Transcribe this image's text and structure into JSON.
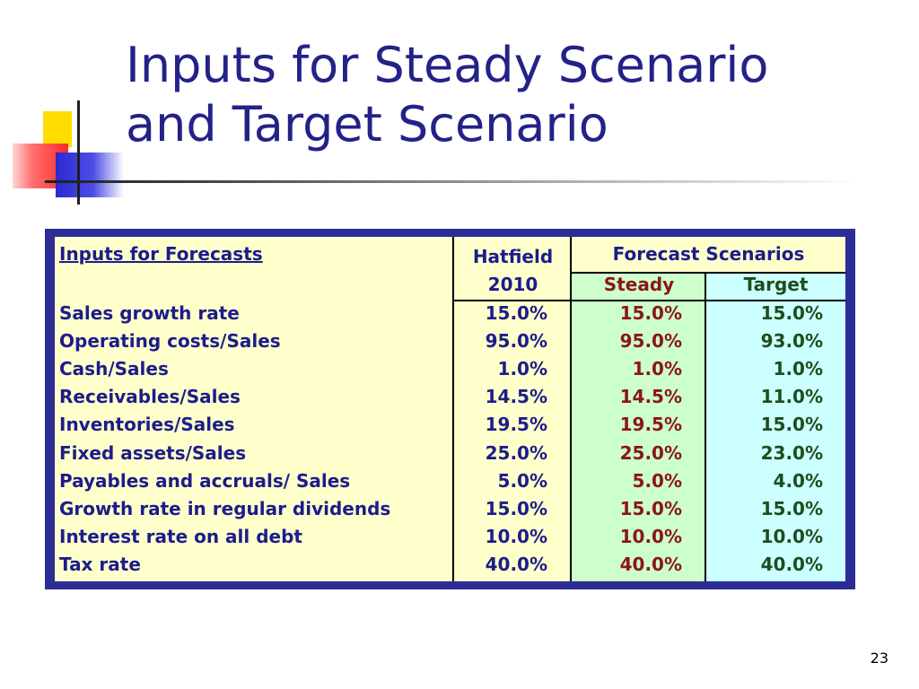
{
  "slide": {
    "title_line1": "Inputs for Steady Scenario",
    "title_line2": "and Target Scenario",
    "page_number": "23"
  },
  "table": {
    "header_link": "Inputs for Forecasts",
    "col_company": "Hatfield",
    "col_year": "2010",
    "col_group": "Forecast Scenarios",
    "col_steady": "Steady",
    "col_target": "Target",
    "rows": [
      {
        "label": "Sales growth rate",
        "hatfield": "15.0%",
        "steady": "15.0%",
        "target": "15.0%"
      },
      {
        "label": "Operating costs/Sales",
        "hatfield": "95.0%",
        "steady": "95.0%",
        "target": "93.0%"
      },
      {
        "label": "Cash/Sales",
        "hatfield": "1.0%",
        "steady": "1.0%",
        "target": "1.0%"
      },
      {
        "label": "Receivables/Sales",
        "hatfield": "14.5%",
        "steady": "14.5%",
        "target": "11.0%"
      },
      {
        "label": "Inventories/Sales",
        "hatfield": "19.5%",
        "steady": "19.5%",
        "target": "15.0%"
      },
      {
        "label": "Fixed assets/Sales",
        "hatfield": "25.0%",
        "steady": "25.0%",
        "target": "23.0%"
      },
      {
        "label": "Payables and accruals/ Sales",
        "hatfield": "5.0%",
        "steady": "5.0%",
        "target": "4.0%"
      },
      {
        "label": "Growth rate in regular dividends",
        "hatfield": "15.0%",
        "steady": "15.0%",
        "target": "15.0%"
      },
      {
        "label": "Interest rate on all debt",
        "hatfield": "10.0%",
        "steady": "10.0%",
        "target": "10.0%"
      },
      {
        "label": "Tax rate",
        "hatfield": "40.0%",
        "steady": "40.0%",
        "target": "40.0%"
      }
    ]
  },
  "colors": {
    "title": "#222288",
    "label_text": "#1c1c8c",
    "steady_text": "#8c1616",
    "target_text": "#1e4d1e",
    "frame": "#2d2d96",
    "yellow_fill": "#ffffcc",
    "green_fill": "#ccffcc",
    "teal_fill": "#ccffff"
  }
}
